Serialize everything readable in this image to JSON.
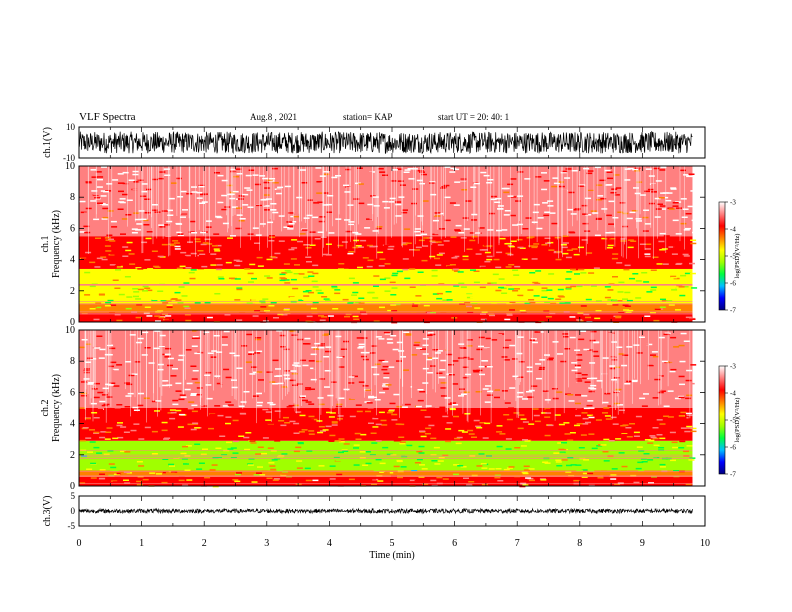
{
  "header": {
    "title": "VLF Spectra",
    "date": "Aug.8 , 2021",
    "station": "station= KAP",
    "start": "start UT = 20: 40: 1"
  },
  "colorbar_colors": [
    "#000080",
    "#0000ff",
    "#00c0ff",
    "#00ff40",
    "#a0ff00",
    "#ffff00",
    "#ff8000",
    "#ff0000",
    "#ff8080",
    "#ffffff"
  ],
  "chart_data": [
    {
      "type": "line",
      "panel": "waveform-ch1",
      "ylabel": "ch.1(V)",
      "yticks": [
        "10",
        "-10"
      ],
      "ylim": [
        -10,
        10
      ],
      "xlim": [
        0,
        10
      ],
      "data_end_min": 9.8,
      "amplitude_range": [
        -7,
        7
      ]
    },
    {
      "type": "heatmap",
      "panel": "spectrogram-ch1",
      "ylabel": "ch.1\nFrequency (kHz)",
      "ylim": [
        0,
        10
      ],
      "yticks": [
        "0",
        "2",
        "4",
        "6",
        "8",
        "10"
      ],
      "xlim": [
        0,
        10
      ],
      "data_end_min": 9.8,
      "bands": [
        {
          "from_khz": 0.0,
          "to_khz": 0.6,
          "level": -3.8
        },
        {
          "from_khz": 0.6,
          "to_khz": 1.2,
          "level": -4.3
        },
        {
          "from_khz": 1.2,
          "to_khz": 3.4,
          "level": -5.0
        },
        {
          "from_khz": 3.4,
          "to_khz": 5.5,
          "level": -4.0
        },
        {
          "from_khz": 5.5,
          "to_khz": 10.0,
          "level": -3.4
        }
      ],
      "colorbar": {
        "label": "log(PSD)(V²/Hz)",
        "range": [
          -7,
          -3
        ],
        "ticks": [
          "-3",
          "-4",
          "-5",
          "-6",
          "-7"
        ]
      }
    },
    {
      "type": "heatmap",
      "panel": "spectrogram-ch2",
      "ylabel": "ch.2\nFrequency (kHz)",
      "ylim": [
        0,
        10
      ],
      "yticks": [
        "0",
        "2",
        "4",
        "6",
        "8",
        "10"
      ],
      "xlim": [
        0,
        10
      ],
      "data_end_min": 9.8,
      "bands": [
        {
          "from_khz": 0.0,
          "to_khz": 0.6,
          "level": -3.9
        },
        {
          "from_khz": 0.6,
          "to_khz": 1.0,
          "level": -4.4
        },
        {
          "from_khz": 1.0,
          "to_khz": 2.9,
          "level": -5.1
        },
        {
          "from_khz": 2.9,
          "to_khz": 5.0,
          "level": -4.0
        },
        {
          "from_khz": 5.0,
          "to_khz": 10.0,
          "level": -3.4
        }
      ],
      "colorbar": {
        "label": "log(PSD)(V²/Hz)",
        "range": [
          -7,
          -3
        ],
        "ticks": [
          "-3",
          "-4",
          "-5",
          "-6",
          "-7"
        ]
      }
    },
    {
      "type": "line",
      "panel": "waveform-ch3",
      "ylabel": "ch.3(V)",
      "yticks": [
        "5",
        "0",
        "-5"
      ],
      "ylim": [
        -5,
        5
      ],
      "xlim": [
        0,
        10
      ],
      "data_end_min": 9.8,
      "amplitude_range": [
        -0.7,
        0.7
      ]
    }
  ],
  "xaxis": {
    "label": "Time (min)",
    "ticks": [
      "0",
      "1",
      "2",
      "3",
      "4",
      "5",
      "6",
      "7",
      "8",
      "9",
      "10"
    ]
  }
}
